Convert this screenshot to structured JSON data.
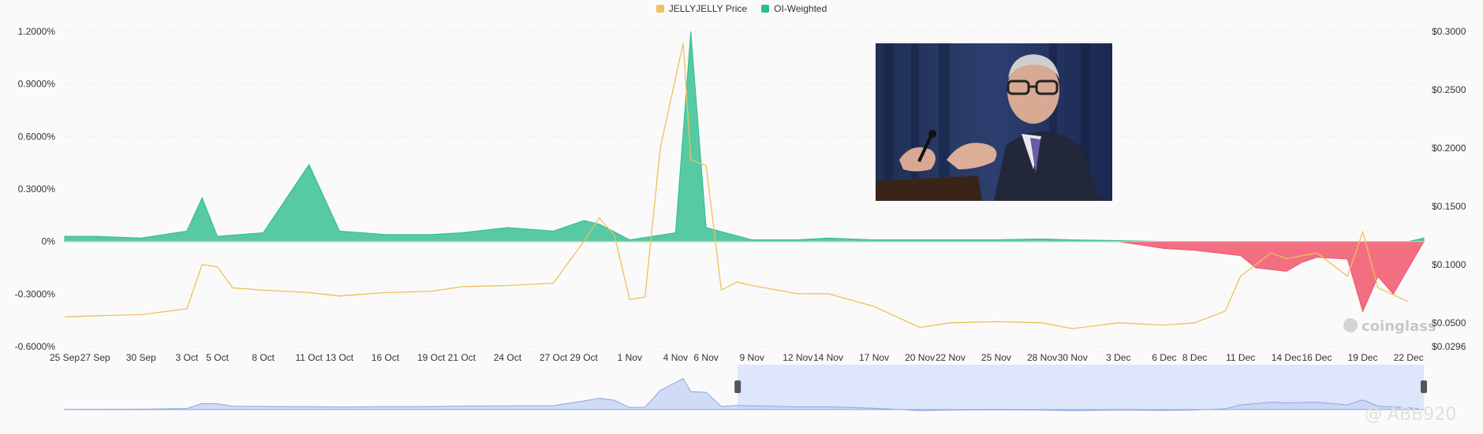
{
  "legend": {
    "price_label": "JELLYJELLY Price",
    "funding_label": "OI-Weighted",
    "price_color": "#f0c05a",
    "funding_color": "#2ebd8f"
  },
  "watermarks": {
    "brand": "coinglass",
    "user": "@ ABB920"
  },
  "chart_data": {
    "type": "area",
    "x_tick_labels": [
      "25 Sep",
      "27 Sep",
      "30 Sep",
      "3 Oct",
      "5 Oct",
      "8 Oct",
      "11 Oct",
      "13 Oct",
      "16 Oct",
      "19 Oct",
      "21 Oct",
      "24 Oct",
      "27 Oct",
      "29 Oct",
      "1 Nov",
      "4 Nov",
      "6 Nov",
      "9 Nov",
      "12 Nov",
      "14 Nov",
      "17 Nov",
      "20 Nov",
      "22 Nov",
      "25 Nov",
      "28 Nov",
      "30 Nov",
      "3 Dec",
      "6 Dec",
      "8 Dec",
      "11 Dec",
      "14 Dec",
      "16 Dec",
      "19 Dec",
      "22 Dec"
    ],
    "y_left": {
      "ticks": [
        "1.2000%",
        "0.9000%",
        "0.6000%",
        "0.3000%",
        "0%",
        "-0.3000%",
        "-0.6000%"
      ],
      "range": [
        -0.6,
        1.2
      ]
    },
    "y_right": {
      "ticks": [
        "$0.3000",
        "$0.2500",
        "$0.2000",
        "$0.1500",
        "$0.1000",
        "$0.0500",
        "$0.0296"
      ],
      "range": [
        0.0296,
        0.3
      ]
    },
    "grid": true,
    "legend_position": "top-center",
    "series": [
      {
        "name": "JELLYJELLY Price",
        "color": "#f0c05a",
        "points": [
          [
            "25 Sep",
            0.055
          ],
          [
            "27 Sep",
            0.056
          ],
          [
            "30 Sep",
            0.057
          ],
          [
            "3 Oct",
            0.062
          ],
          [
            "4 Oct",
            0.1
          ],
          [
            "5 Oct",
            0.098
          ],
          [
            "6 Oct",
            0.08
          ],
          [
            "8 Oct",
            0.078
          ],
          [
            "11 Oct",
            0.076
          ],
          [
            "13 Oct",
            0.073
          ],
          [
            "16 Oct",
            0.076
          ],
          [
            "19 Oct",
            0.077
          ],
          [
            "21 Oct",
            0.081
          ],
          [
            "24 Oct",
            0.082
          ],
          [
            "27 Oct",
            0.084
          ],
          [
            "29 Oct",
            0.12
          ],
          [
            "30 Oct",
            0.14
          ],
          [
            "31 Oct",
            0.125
          ],
          [
            "1 Nov",
            0.07
          ],
          [
            "2 Nov",
            0.072
          ],
          [
            "3 Nov",
            0.2
          ],
          [
            "4 Nov",
            0.26
          ],
          [
            "4 Nov 12h",
            0.29
          ],
          [
            "5 Nov",
            0.19
          ],
          [
            "6 Nov",
            0.185
          ],
          [
            "7 Nov",
            0.078
          ],
          [
            "8 Nov",
            0.085
          ],
          [
            "9 Nov",
            0.082
          ],
          [
            "12 Nov",
            0.075
          ],
          [
            "14 Nov",
            0.075
          ],
          [
            "17 Nov",
            0.064
          ],
          [
            "20 Nov",
            0.046
          ],
          [
            "22 Nov",
            0.05
          ],
          [
            "25 Nov",
            0.051
          ],
          [
            "28 Nov",
            0.05
          ],
          [
            "30 Nov",
            0.045
          ],
          [
            "3 Dec",
            0.05
          ],
          [
            "6 Dec",
            0.048
          ],
          [
            "8 Dec",
            0.05
          ],
          [
            "10 Dec",
            0.06
          ],
          [
            "11 Dec",
            0.09
          ],
          [
            "13 Dec",
            0.11
          ],
          [
            "14 Dec",
            0.105
          ],
          [
            "16 Dec",
            0.11
          ],
          [
            "18 Dec",
            0.09
          ],
          [
            "19 Dec",
            0.128
          ],
          [
            "20 Dec",
            0.08
          ],
          [
            "22 Dec",
            0.068
          ]
        ]
      },
      {
        "name": "OI-Weighted",
        "color_positive": "#2ebd8f",
        "color_negative": "#f0566c",
        "points": [
          [
            "25 Sep",
            0.03
          ],
          [
            "27 Sep",
            0.03
          ],
          [
            "30 Sep",
            0.02
          ],
          [
            "3 Oct",
            0.06
          ],
          [
            "4 Oct",
            0.25
          ],
          [
            "5 Oct",
            0.03
          ],
          [
            "8 Oct",
            0.05
          ],
          [
            "11 Oct",
            0.44
          ],
          [
            "13 Oct",
            0.06
          ],
          [
            "16 Oct",
            0.04
          ],
          [
            "19 Oct",
            0.04
          ],
          [
            "21 Oct",
            0.05
          ],
          [
            "24 Oct",
            0.08
          ],
          [
            "27 Oct",
            0.06
          ],
          [
            "29 Oct",
            0.12
          ],
          [
            "30 Oct",
            0.1
          ],
          [
            "1 Nov",
            0.01
          ],
          [
            "4 Nov",
            0.05
          ],
          [
            "5 Nov",
            1.2
          ],
          [
            "6 Nov",
            0.08
          ],
          [
            "9 Nov",
            0.01
          ],
          [
            "12 Nov",
            0.01
          ],
          [
            "14 Nov",
            0.02
          ],
          [
            "17 Nov",
            0.01
          ],
          [
            "20 Nov",
            0.01
          ],
          [
            "22 Nov",
            0.01
          ],
          [
            "25 Nov",
            0.01
          ],
          [
            "28 Nov",
            0.015
          ],
          [
            "30 Nov",
            0.01
          ],
          [
            "3 Dec",
            0.005
          ],
          [
            "6 Dec",
            -0.04
          ],
          [
            "8 Dec",
            -0.05
          ],
          [
            "11 Dec",
            -0.08
          ],
          [
            "12 Dec",
            -0.15
          ],
          [
            "14 Dec",
            -0.17
          ],
          [
            "15 Dec",
            -0.12
          ],
          [
            "16 Dec",
            -0.09
          ],
          [
            "18 Dec",
            -0.1
          ],
          [
            "19 Dec",
            -0.4
          ],
          [
            "20 Dec",
            -0.2
          ],
          [
            "21 Dec",
            -0.3
          ],
          [
            "22 Dec",
            -0.15
          ],
          [
            "23 Dec",
            0.02
          ]
        ]
      }
    ]
  }
}
